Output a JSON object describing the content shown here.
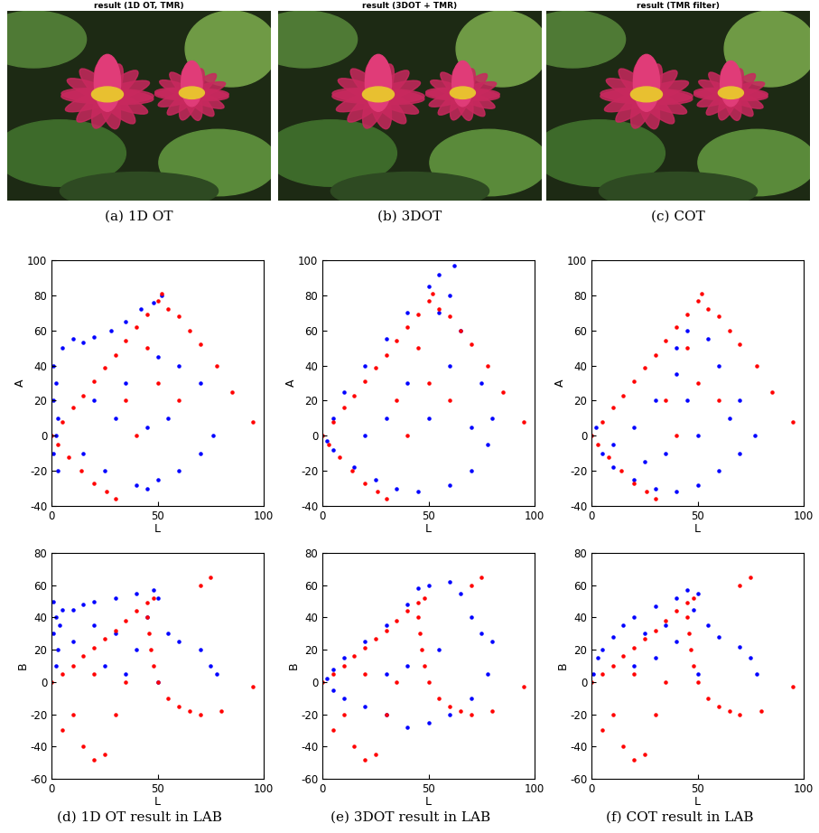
{
  "images": [
    {
      "title": "result (1D OT, TMR)",
      "caption": "(a) 1D OT"
    },
    {
      "title": "result (3DOT + TMR)",
      "caption": "(b) 3DOT"
    },
    {
      "title": "result (TMR filter)",
      "caption": "(c) COT"
    }
  ],
  "chart_data": [
    {
      "type": "scatter",
      "caption": "(d) 1D OT result in LAB",
      "x_label": "L",
      "y_label": "A",
      "xlim": [
        0,
        100
      ],
      "xticks": [
        0,
        50,
        100
      ],
      "ylim": [
        -40,
        100
      ],
      "yticks": [
        -40,
        -20,
        0,
        20,
        40,
        60,
        80,
        100
      ],
      "marker": "o",
      "series": [
        {
          "color": "#0000ff",
          "x": [
            1,
            2,
            1,
            3,
            2,
            1,
            3,
            5,
            10,
            15,
            20,
            28,
            35,
            42,
            48,
            52,
            20,
            30,
            35,
            45,
            40,
            45,
            50,
            60,
            70,
            76,
            70,
            60,
            50,
            25,
            15,
            55
          ],
          "y": [
            40,
            30,
            20,
            10,
            0,
            -10,
            -20,
            50,
            55,
            53,
            56,
            60,
            65,
            72,
            76,
            80,
            20,
            10,
            30,
            5,
            -28,
            -30,
            -25,
            -20,
            -10,
            0,
            30,
            40,
            45,
            -20,
            -10,
            10
          ]
        },
        {
          "color": "#ff0000",
          "x": [
            0,
            5,
            10,
            15,
            20,
            25,
            30,
            35,
            40,
            45,
            50,
            52,
            3,
            8,
            14,
            20,
            26,
            30,
            55,
            60,
            65,
            70,
            78,
            85,
            95,
            45,
            35,
            50,
            40,
            60
          ],
          "y": [
            0,
            8,
            16,
            23,
            31,
            39,
            46,
            54,
            62,
            69,
            77,
            81,
            -5,
            -12,
            -20,
            -27,
            -32,
            -36,
            72,
            68,
            60,
            52,
            40,
            25,
            8,
            50,
            20,
            30,
            0,
            20
          ]
        }
      ]
    },
    {
      "type": "scatter",
      "caption": "(e) 3DOT result in LAB",
      "x_label": "L",
      "y_label": "A",
      "xlim": [
        0,
        100
      ],
      "xticks": [
        0,
        50,
        100
      ],
      "ylim": [
        -40,
        100
      ],
      "yticks": [
        -40,
        -20,
        0,
        20,
        40,
        60,
        80,
        100
      ],
      "marker": "o",
      "series": [
        {
          "color": "#0000ff",
          "x": [
            5,
            10,
            20,
            30,
            40,
            50,
            55,
            62,
            60,
            55,
            65,
            75,
            80,
            78,
            70,
            60,
            45,
            35,
            25,
            15,
            5,
            2,
            40,
            50,
            30,
            60,
            20,
            70
          ],
          "y": [
            10,
            25,
            40,
            55,
            70,
            85,
            92,
            97,
            80,
            70,
            60,
            30,
            10,
            -5,
            -20,
            -28,
            -32,
            -30,
            -25,
            -18,
            -8,
            -3,
            30,
            10,
            10,
            40,
            0,
            5
          ]
        },
        {
          "color": "#ff0000",
          "x": [
            0,
            5,
            10,
            15,
            20,
            25,
            30,
            35,
            40,
            45,
            50,
            52,
            3,
            8,
            14,
            20,
            26,
            30,
            55,
            60,
            65,
            70,
            78,
            85,
            95,
            45,
            35,
            50,
            40,
            60
          ],
          "y": [
            0,
            8,
            16,
            23,
            31,
            39,
            46,
            54,
            62,
            69,
            77,
            81,
            -5,
            -12,
            -20,
            -27,
            -32,
            -36,
            72,
            68,
            60,
            52,
            40,
            25,
            8,
            50,
            20,
            30,
            0,
            20
          ]
        }
      ]
    },
    {
      "type": "scatter",
      "caption": "(f) COT result in LAB",
      "x_label": "L",
      "y_label": "A",
      "xlim": [
        0,
        100
      ],
      "xticks": [
        0,
        50,
        100
      ],
      "ylim": [
        -40,
        100
      ],
      "yticks": [
        -40,
        -20,
        0,
        20,
        40,
        60,
        80,
        100
      ],
      "marker": "o",
      "series": [
        {
          "color": "#0000ff",
          "x": [
            2,
            5,
            10,
            20,
            30,
            40,
            50,
            60,
            70,
            77,
            70,
            60,
            55,
            45,
            40,
            30,
            20,
            45,
            50,
            35,
            65,
            40,
            25,
            10
          ],
          "y": [
            5,
            -10,
            -18,
            -25,
            -30,
            -32,
            -28,
            -20,
            -10,
            0,
            20,
            40,
            55,
            60,
            50,
            20,
            5,
            20,
            0,
            -10,
            10,
            35,
            -15,
            -5
          ]
        },
        {
          "color": "#ff0000",
          "x": [
            0,
            5,
            10,
            15,
            20,
            25,
            30,
            35,
            40,
            45,
            50,
            52,
            3,
            8,
            14,
            20,
            26,
            30,
            55,
            60,
            65,
            70,
            78,
            85,
            95,
            45,
            35,
            50,
            40,
            60
          ],
          "y": [
            0,
            8,
            16,
            23,
            31,
            39,
            46,
            54,
            62,
            69,
            77,
            81,
            -5,
            -12,
            -20,
            -27,
            -32,
            -36,
            72,
            68,
            60,
            52,
            40,
            25,
            8,
            50,
            20,
            30,
            0,
            20
          ]
        }
      ]
    },
    {
      "type": "scatter",
      "x_label": "L",
      "y_label": "B",
      "xlim": [
        0,
        100
      ],
      "xticks": [
        0,
        50,
        100
      ],
      "ylim": [
        -60,
        80
      ],
      "yticks": [
        -60,
        -40,
        -20,
        0,
        20,
        40,
        60,
        80
      ],
      "marker": "o",
      "series": [
        {
          "color": "#0000ff",
          "x": [
            1,
            2,
            1,
            3,
            2,
            4,
            5,
            10,
            15,
            20,
            30,
            40,
            48,
            50,
            45,
            55,
            60,
            70,
            78,
            75,
            40,
            30,
            25,
            35,
            50,
            20,
            10
          ],
          "y": [
            50,
            40,
            30,
            20,
            10,
            35,
            45,
            45,
            48,
            50,
            52,
            55,
            57,
            52,
            40,
            30,
            25,
            20,
            5,
            10,
            20,
            30,
            10,
            5,
            0,
            35,
            25
          ]
        },
        {
          "color": "#ff0000",
          "x": [
            0,
            5,
            10,
            15,
            20,
            25,
            30,
            35,
            40,
            45,
            48,
            45,
            46,
            47,
            48,
            50,
            55,
            60,
            65,
            70,
            80,
            95,
            75,
            70,
            10,
            15,
            20,
            25,
            5,
            30,
            35,
            20
          ],
          "y": [
            0,
            5,
            10,
            16,
            21,
            27,
            32,
            38,
            44,
            49,
            52,
            40,
            30,
            20,
            10,
            0,
            -10,
            -15,
            -18,
            -20,
            -18,
            -3,
            65,
            60,
            -20,
            -40,
            -48,
            -45,
            -30,
            -20,
            0,
            5
          ]
        }
      ]
    },
    {
      "type": "scatter",
      "x_label": "L",
      "y_label": "B",
      "xlim": [
        0,
        100
      ],
      "xticks": [
        0,
        50,
        100
      ],
      "ylim": [
        -60,
        80
      ],
      "yticks": [
        -60,
        -40,
        -20,
        0,
        20,
        40,
        60,
        80
      ],
      "marker": "o",
      "series": [
        {
          "color": "#0000ff",
          "x": [
            2,
            5,
            10,
            20,
            30,
            40,
            45,
            50,
            60,
            65,
            70,
            75,
            80,
            78,
            70,
            60,
            50,
            40,
            30,
            20,
            10,
            5,
            40,
            55,
            30
          ],
          "y": [
            2,
            8,
            15,
            25,
            35,
            48,
            58,
            60,
            62,
            55,
            40,
            30,
            25,
            5,
            -10,
            -20,
            -25,
            -28,
            -20,
            -15,
            -10,
            -5,
            10,
            20,
            5
          ]
        },
        {
          "color": "#ff0000",
          "x": [
            0,
            5,
            10,
            15,
            20,
            25,
            30,
            35,
            40,
            45,
            48,
            45,
            46,
            47,
            48,
            50,
            55,
            60,
            65,
            70,
            80,
            95,
            75,
            70,
            10,
            15,
            20,
            25,
            5,
            30,
            35,
            20
          ],
          "y": [
            0,
            5,
            10,
            16,
            21,
            27,
            32,
            38,
            44,
            49,
            52,
            40,
            30,
            20,
            10,
            0,
            -10,
            -15,
            -18,
            -20,
            -18,
            -3,
            65,
            60,
            -20,
            -40,
            -48,
            -45,
            -30,
            -20,
            0,
            5
          ]
        }
      ]
    },
    {
      "type": "scatter",
      "x_label": "L",
      "y_label": "B",
      "xlim": [
        0,
        100
      ],
      "xticks": [
        0,
        50,
        100
      ],
      "ylim": [
        -60,
        80
      ],
      "yticks": [
        -60,
        -40,
        -20,
        0,
        20,
        40,
        60,
        80
      ],
      "marker": "o",
      "series": [
        {
          "color": "#0000ff",
          "x": [
            1,
            3,
            5,
            10,
            15,
            20,
            30,
            40,
            45,
            50,
            48,
            55,
            60,
            70,
            78,
            75,
            40,
            30,
            25,
            35,
            20,
            50
          ],
          "y": [
            5,
            15,
            20,
            28,
            35,
            40,
            47,
            52,
            57,
            55,
            45,
            35,
            28,
            22,
            5,
            15,
            25,
            15,
            30,
            35,
            10,
            5
          ]
        },
        {
          "color": "#ff0000",
          "x": [
            0,
            5,
            10,
            15,
            20,
            25,
            30,
            35,
            40,
            45,
            48,
            45,
            46,
            47,
            48,
            50,
            55,
            60,
            65,
            70,
            80,
            95,
            75,
            70,
            10,
            15,
            20,
            25,
            5,
            30,
            35,
            20
          ],
          "y": [
            0,
            5,
            10,
            16,
            21,
            27,
            32,
            38,
            44,
            49,
            52,
            40,
            30,
            20,
            10,
            0,
            -10,
            -15,
            -18,
            -20,
            -18,
            -3,
            65,
            60,
            -20,
            -40,
            -48,
            -45,
            -30,
            -20,
            0,
            5
          ]
        }
      ]
    }
  ]
}
